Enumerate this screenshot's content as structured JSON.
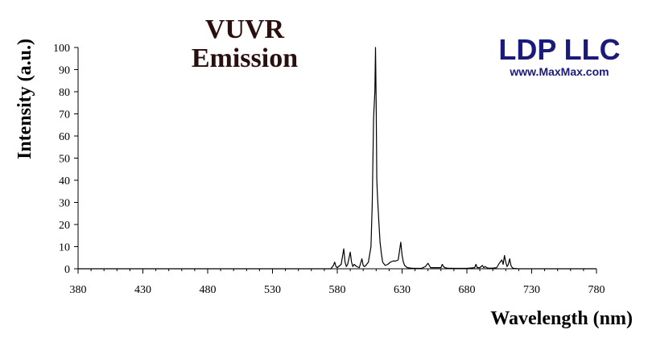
{
  "brand": {
    "name": "LDP LLC",
    "url": "www.MaxMax.com",
    "color": "#1a1a7a"
  },
  "chart_data": {
    "type": "line",
    "title_lines": [
      "VUVR",
      "Emission"
    ],
    "xlabel": "Wavelength (nm)",
    "ylabel": "Intensity (a.u.)",
    "xlim": [
      380,
      780
    ],
    "ylim": [
      0,
      100
    ],
    "x_ticks": [
      380,
      430,
      480,
      530,
      580,
      630,
      680,
      730,
      780
    ],
    "y_ticks": [
      0,
      10,
      20,
      30,
      40,
      50,
      60,
      70,
      80,
      90,
      100
    ],
    "series": [
      {
        "x": [
          380,
          575,
          577,
          578,
          579,
          580,
          581,
          583,
          585,
          586,
          587,
          588,
          590,
          591,
          592,
          593,
          595,
          597,
          599,
          600,
          601,
          602,
          604,
          606,
          607,
          608,
          609,
          609.5,
          610,
          610.5,
          611,
          612,
          613,
          614,
          615,
          617,
          619,
          621,
          623,
          625,
          627,
          628,
          629,
          630,
          631,
          632,
          634,
          637,
          640,
          645,
          648,
          650,
          651,
          652,
          655,
          660,
          661,
          662,
          663,
          665,
          670,
          680,
          686,
          687,
          688,
          690,
          692,
          693,
          694,
          696,
          700,
          703,
          705,
          707,
          708,
          709,
          710,
          711,
          712,
          713,
          714,
          715,
          716,
          720,
          780
        ],
        "y": [
          0,
          0,
          1.5,
          3,
          1,
          0.5,
          1,
          2,
          9,
          3,
          1,
          2,
          7.5,
          3,
          1,
          2,
          1,
          0.5,
          4.5,
          1.5,
          1,
          1.5,
          3,
          10,
          30,
          68,
          80,
          100,
          75,
          40,
          33,
          22,
          12,
          7,
          3,
          1.5,
          2,
          3,
          3.5,
          3.5,
          4,
          8,
          12,
          6,
          3,
          1.5,
          0.5,
          0.3,
          0.2,
          0.2,
          1,
          2.5,
          1.5,
          0.5,
          0.5,
          0.5,
          2,
          1,
          0.5,
          0.3,
          0.2,
          0.2,
          0.5,
          2,
          0.5,
          0.5,
          1.5,
          0.5,
          1,
          0.3,
          0.3,
          0.5,
          2.5,
          4,
          2,
          6,
          3,
          1,
          2,
          4.5,
          1.5,
          0.5,
          0.2,
          0,
          0
        ]
      }
    ],
    "grid": false,
    "legend": "none"
  }
}
